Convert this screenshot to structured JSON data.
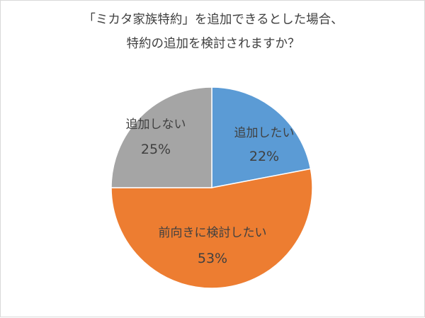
{
  "chart_data": {
    "type": "pie",
    "title_lines": [
      "「ミカタ家族特約」を追加できるとした場合、",
      "特約の追加を検討されますか？"
    ],
    "start_angle_deg": 0,
    "direction": "clockwise",
    "slices": [
      {
        "label": "追加したい",
        "value": 22,
        "value_label": "22%",
        "color": "#5b9bd5"
      },
      {
        "label": "前向きに検討したい",
        "value": 53,
        "value_label": "53%",
        "color": "#ed7d31"
      },
      {
        "label": "追加しない",
        "value": 25,
        "value_label": "25%",
        "color": "#a5a5a5"
      }
    ],
    "slice_border_color": "#ffffff",
    "legend": "none"
  }
}
